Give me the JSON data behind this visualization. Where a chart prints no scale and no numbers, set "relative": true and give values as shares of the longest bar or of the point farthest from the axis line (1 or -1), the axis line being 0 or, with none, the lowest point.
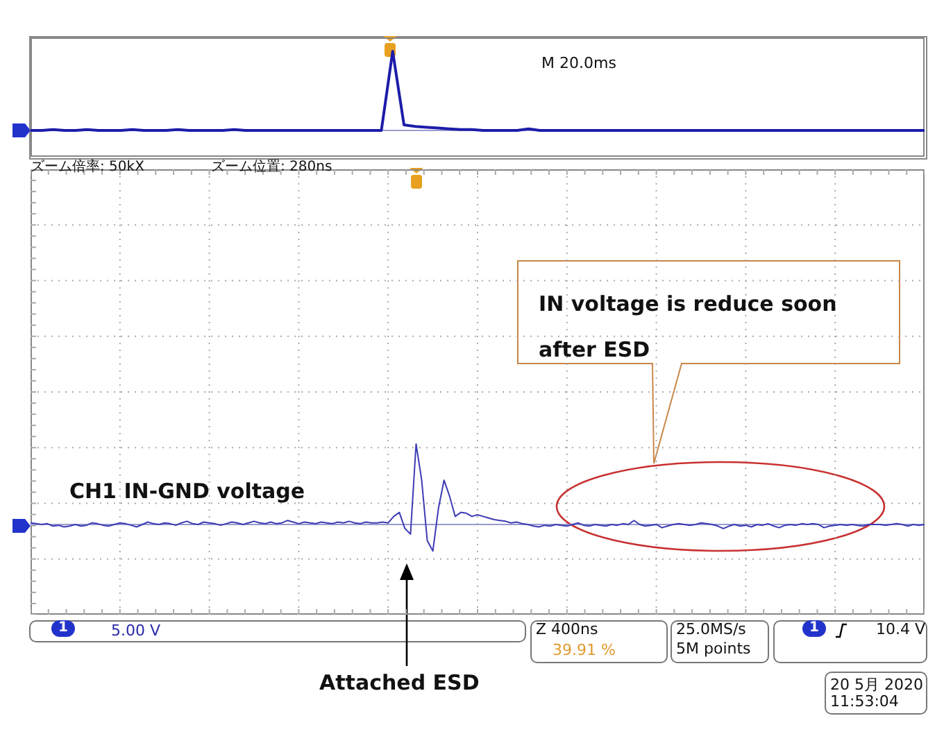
{
  "chart_data": [
    {
      "type": "line",
      "relative": true,
      "grid": false,
      "legend": false,
      "marker": "none",
      "line_style": "solid",
      "categories": [
        null,
        null,
        null,
        null,
        null,
        null,
        null,
        null,
        null,
        null,
        null,
        null,
        null,
        null,
        null,
        null,
        null,
        null,
        null,
        null,
        null,
        null,
        null,
        null,
        null,
        null,
        null,
        null,
        null,
        null,
        null,
        null,
        null,
        null,
        null,
        null,
        null,
        null,
        null,
        null,
        null,
        null,
        null,
        null,
        null,
        null,
        null,
        null,
        null,
        null,
        null,
        null,
        null,
        null,
        null,
        null,
        null,
        null,
        null,
        null,
        null,
        null,
        null,
        null,
        null,
        null,
        null,
        null,
        null,
        null,
        null,
        null,
        null,
        null,
        null,
        null,
        null,
        null,
        null,
        null
      ],
      "series": [
        {
          "color": "#1c1caa",
          "values": [
            0,
            0,
            0.01,
            0,
            0,
            0.01,
            0,
            0,
            0,
            0.01,
            0,
            0,
            0,
            0.01,
            0,
            0,
            0,
            0,
            0.01,
            0,
            0,
            0,
            0,
            0,
            0,
            0,
            0,
            0,
            0,
            0,
            0,
            0,
            1,
            0.07,
            0.05,
            0.04,
            0.03,
            0.02,
            0.01,
            0.01,
            0,
            0,
            0,
            0,
            0.02,
            0,
            0,
            0,
            0,
            0,
            0,
            0,
            0,
            0,
            0,
            0,
            0,
            0,
            0,
            0,
            0,
            0,
            0,
            0,
            0,
            0,
            0,
            0,
            0,
            0,
            0,
            0,
            0,
            0,
            0,
            0,
            0,
            0,
            0,
            0
          ]
        }
      ],
      "annotations": [
        "M 20.0ms",
        "ズーム倍率: 50kX",
        "ズーム位置: 280ns"
      ]
    },
    {
      "type": "line",
      "relative": true,
      "grid": true,
      "legend": false,
      "marker": "none",
      "line_style": "solid",
      "categories": [
        null,
        null,
        null,
        null,
        null,
        null,
        null,
        null,
        null,
        null,
        null,
        null,
        null,
        null,
        null,
        null,
        null,
        null,
        null,
        null,
        null,
        null,
        null,
        null,
        null,
        null,
        null,
        null,
        null,
        null,
        null,
        null,
        null,
        null,
        null,
        null,
        null,
        null,
        null,
        null,
        null,
        null,
        null,
        null,
        null,
        null,
        null,
        null,
        null,
        null,
        null,
        null,
        null,
        null,
        null,
        null,
        null,
        null,
        null,
        null,
        null,
        null,
        null,
        null,
        null,
        null,
        null,
        null,
        null,
        null,
        null,
        null,
        null,
        null,
        null,
        null,
        null,
        null,
        null,
        null,
        null,
        null,
        null,
        null,
        null,
        null,
        null,
        null,
        null,
        null,
        null,
        null,
        null,
        null,
        null,
        null,
        null,
        null,
        null,
        null,
        null,
        null,
        null,
        null,
        null,
        null,
        null,
        null,
        null,
        null,
        null,
        null,
        null,
        null,
        null,
        null,
        null,
        null,
        null,
        null,
        null,
        null,
        null,
        null,
        null,
        null,
        null,
        null,
        null,
        null,
        null,
        null,
        null,
        null,
        null,
        null,
        null,
        null,
        null,
        null,
        null,
        null,
        null,
        null,
        null,
        null,
        null,
        null,
        null,
        null,
        null,
        null,
        null,
        null,
        null,
        null,
        null,
        null,
        null,
        null,
        null
      ],
      "series": [
        {
          "color": "#3b3bb4",
          "values": [
            0.02,
            0.01,
            0,
            0.01,
            -0.02,
            -0.01,
            -0.03,
            -0.02,
            0,
            -0.02,
            -0.01,
            0.02,
            0.01,
            -0.01,
            -0.02,
            0,
            0.02,
            0.01,
            -0.01,
            -0.03,
            0,
            0.03,
            0.01,
            0,
            0.02,
            0.01,
            -0.01,
            0.02,
            0.04,
            0.01,
            0,
            0.03,
            0.02,
            0.01,
            -0.01,
            0.01,
            0.03,
            0.02,
            0,
            0.02,
            0.04,
            0.02,
            0.01,
            0.03,
            0.01,
            0.02,
            0.05,
            0.03,
            0.01,
            0.03,
            0.02,
            0.01,
            0.03,
            0.02,
            0.01,
            0.03,
            0.02,
            0.04,
            0.02,
            0.01,
            0.03,
            0.02,
            0.02,
            0.03,
            0.02,
            0.1,
            0.15,
            -0.05,
            -0.12,
            1,
            0.55,
            -0.2,
            -0.33,
            0.2,
            0.55,
            0.35,
            0.1,
            0.15,
            0.14,
            0.1,
            0.12,
            0.1,
            0.08,
            0.06,
            0.05,
            0.04,
            0.02,
            0.03,
            0.01,
            0,
            -0.02,
            -0.03,
            -0.01,
            -0.02,
            0,
            -0.01,
            -0.02,
            0,
            0.02,
            -0.01,
            -0.02,
            0,
            -0.01,
            -0.02,
            0,
            -0.01,
            0.01,
            0,
            0.05,
            0,
            -0.02,
            -0.01,
            0,
            -0.04,
            -0.02,
            0,
            0.01,
            0,
            -0.01,
            0,
            0.02,
            0.01,
            0,
            -0.02,
            -0.05,
            -0.02,
            0,
            -0.02,
            -0.01,
            -0.03,
            0,
            -0.01,
            0.01,
            -0.02,
            -0.04,
            -0.01,
            0,
            -0.01,
            0.01,
            0,
            0.01,
            0,
            -0.04,
            -0.02,
            -0.01,
            0,
            -0.01,
            0,
            -0.01,
            -0.02,
            0,
            0,
            0,
            -0.01,
            0,
            0.01,
            0,
            -0.02,
            0,
            -0.01,
            0
          ]
        }
      ],
      "ref_lines": [
        {
          "axis": "y",
          "value": 0,
          "color": "#9a9ad0"
        }
      ],
      "annotations": [
        "CH1 IN-GND voltage",
        "IN voltage is reduce soon after ESD",
        "Attached ESD",
        "5.00 V",
        "Z 400ns",
        "39.91 %",
        "25.0MS/s",
        "5M points",
        "10.4 V",
        "20 5月 2020",
        "11:53:04",
        "1",
        "1"
      ]
    }
  ]
}
